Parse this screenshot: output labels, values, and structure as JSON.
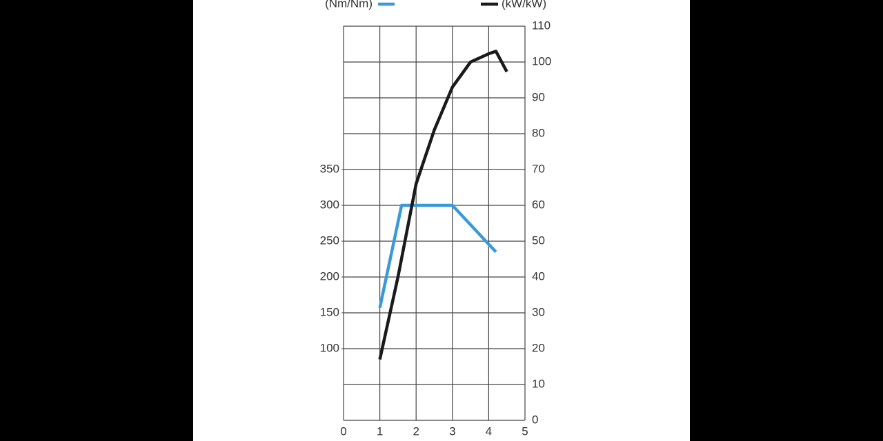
{
  "chart_data": {
    "type": "line",
    "xlim": [
      0,
      5
    ],
    "xticks": [
      0,
      1,
      2,
      3,
      4,
      5
    ],
    "ylim": [
      0,
      550
    ],
    "yticks": [
      100,
      150,
      200,
      250,
      300,
      350
    ],
    "y2lim": [
      0,
      110
    ],
    "y2ticks": [
      0,
      10,
      20,
      30,
      40,
      50,
      60,
      70,
      80,
      90,
      100,
      110
    ],
    "grid": true,
    "series": [
      {
        "name": "(Nm/Nm)",
        "color": "#3a9ad9",
        "x": [
          1,
          1.6,
          3.0,
          4.2
        ],
        "values": [
          157,
          300,
          300,
          235
        ]
      },
      {
        "name": "(kW/kW)",
        "color": "#1a1a1a",
        "axis": "y2",
        "x": [
          1,
          1.5,
          2,
          2.5,
          3,
          3.5,
          4,
          4.2,
          4.5
        ],
        "values": [
          17,
          40,
          66,
          81,
          93,
          100,
          102.3,
          103,
          97.3
        ]
      }
    ]
  }
}
